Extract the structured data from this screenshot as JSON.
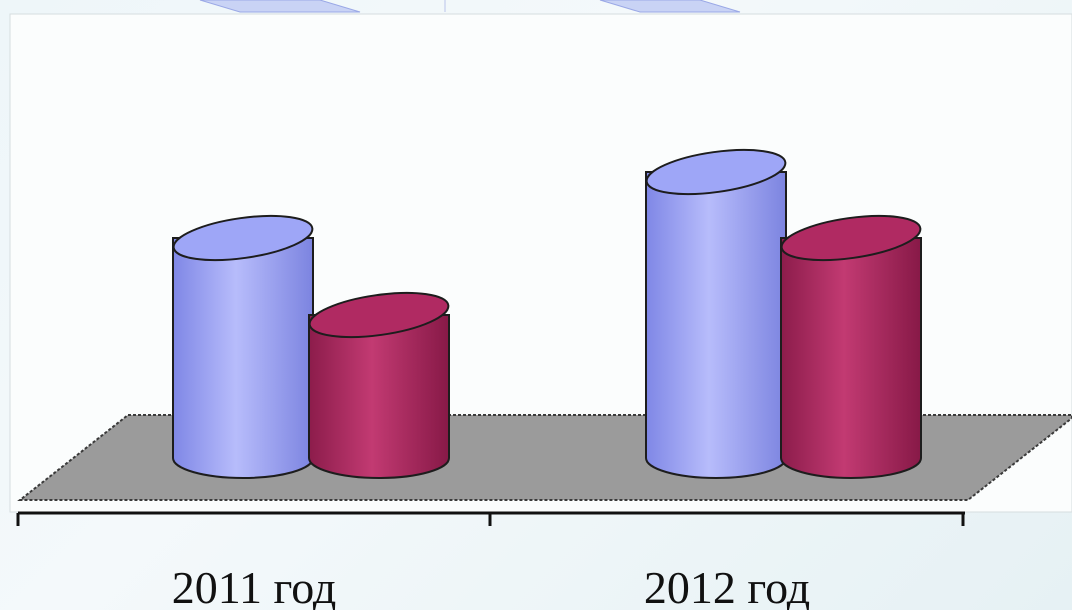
{
  "chart_data": {
    "type": "bar",
    "style": "3d-cylinder",
    "categories": [
      "2011 год",
      "2012 год"
    ],
    "series": [
      {
        "color": "#9ea6f7",
        "values": [
          1.0,
          1.3
        ]
      },
      {
        "color": "#b02a62",
        "values": [
          0.65,
          1.0
        ]
      }
    ],
    "title": "",
    "xlabel": "",
    "ylabel": "",
    "ylim": [
      0,
      1.4
    ],
    "grid": false,
    "legend": "none",
    "floor_color": "#9b9b9b"
  }
}
